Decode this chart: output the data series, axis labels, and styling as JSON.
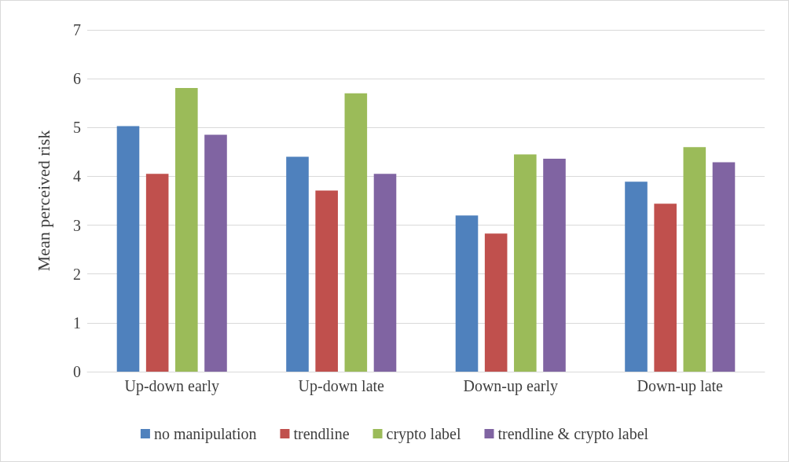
{
  "chart_data": {
    "type": "bar",
    "ylabel": "Mean perceived risk",
    "categories": [
      "Up-down early",
      "Up-down late",
      "Down-up early",
      "Down-up late"
    ],
    "series": [
      {
        "name": "no manipulation",
        "color": "#4f81bd",
        "values": [
          5.03,
          4.4,
          3.2,
          3.89
        ]
      },
      {
        "name": "trendline",
        "color": "#c0504d",
        "values": [
          4.05,
          3.71,
          2.83,
          3.44
        ]
      },
      {
        "name": "crypto label",
        "color": "#9bbb59",
        "values": [
          5.81,
          5.7,
          4.45,
          4.6
        ]
      },
      {
        "name": "trendline & crypto label",
        "color": "#8064a2",
        "values": [
          4.85,
          4.05,
          4.36,
          4.29
        ]
      }
    ],
    "ylim": [
      0,
      7
    ],
    "yticks": [
      0,
      1,
      2,
      3,
      4,
      5,
      6,
      7
    ],
    "grid": "y",
    "legend": "bottom"
  }
}
